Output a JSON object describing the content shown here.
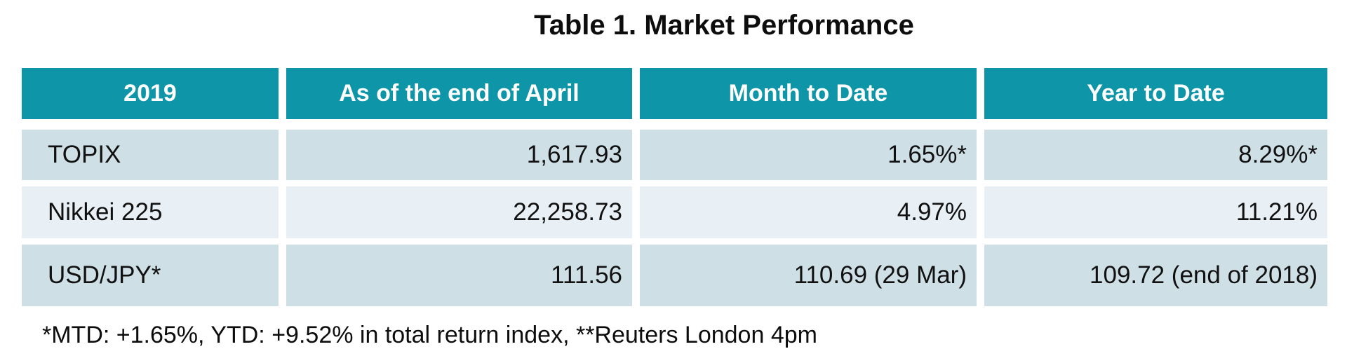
{
  "title": "Table 1. Market Performance",
  "table": {
    "headers": [
      "2019",
      "As of the end of April",
      "Month to Date",
      "Year to Date"
    ],
    "rows": [
      {
        "label": "TOPIX",
        "values": [
          "1,617.93",
          "1.65%*",
          "8.29%*"
        ]
      },
      {
        "label": "Nikkei 225",
        "values": [
          "22,258.73",
          "4.97%",
          "11.21%"
        ]
      },
      {
        "label": "USD/JPY*",
        "values": [
          "111.56",
          "110.69 (29 Mar)",
          "109.72 (end of 2018)"
        ]
      }
    ]
  },
  "footnote": "*MTD: +1.65%, YTD: +9.52% in total return index, **Reuters London 4pm",
  "colors": {
    "header_bg": "#0e96a8",
    "header_text": "#ffffff",
    "row_odd_bg": "#cedfe6",
    "row_even_bg": "#e9f0f5",
    "body_text": "#0d0d0d",
    "page_bg": "#ffffff"
  },
  "chart_data": {
    "type": "table",
    "title": "Table 1. Market Performance",
    "columns": [
      "2019",
      "As of the end of April",
      "Month to Date",
      "Year to Date"
    ],
    "rows": [
      [
        "TOPIX",
        "1,617.93",
        "1.65%*",
        "8.29%*"
      ],
      [
        "Nikkei 225",
        "22,258.73",
        "4.97%",
        "11.21%"
      ],
      [
        "USD/JPY*",
        "111.56",
        "110.69 (29 Mar)",
        "109.72 (end of 2018)"
      ]
    ],
    "footnote": "*MTD: +1.65%, YTD: +9.52% in total return index, **Reuters London 4pm"
  }
}
